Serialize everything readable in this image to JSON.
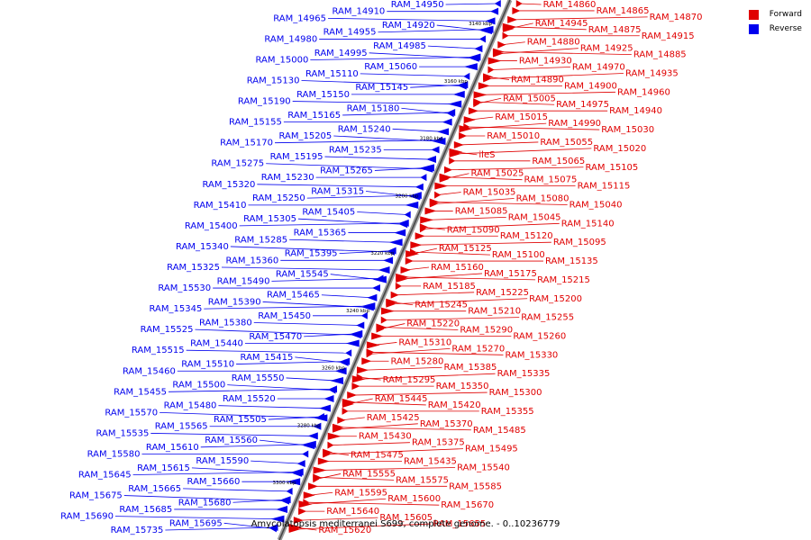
{
  "legend": {
    "forward_label": "Forward",
    "reverse_label": "Reverse",
    "forward_color": "#e00000",
    "reverse_color": "#0000ee"
  },
  "caption": "Amycolatopsis mediterranei S699, complete genome. - 0..10236779",
  "axis_ticks": [
    "3140 kbp",
    "3160 kbp",
    "3180 kbp",
    "3200 kbp",
    "3220 kbp",
    "3240 kbp",
    "3260 kbp",
    "3280 kbp",
    "3300 kbp"
  ],
  "reverse_genes": [
    "RAM_14950",
    "RAM_14910",
    "RAM_14965",
    "RAM_14920",
    "RAM_14955",
    "RAM_14980",
    "RAM_14985",
    "RAM_14995",
    "RAM_15000",
    "RAM_15060",
    "RAM_15110",
    "RAM_15130",
    "RAM_15145",
    "RAM_15150",
    "RAM_15190",
    "RAM_15180",
    "RAM_15165",
    "RAM_15155",
    "RAM_15240",
    "RAM_15205",
    "RAM_15170",
    "RAM_15235",
    "RAM_15195",
    "RAM_15275",
    "RAM_15265",
    "RAM_15230",
    "RAM_15320",
    "RAM_15315",
    "RAM_15250",
    "RAM_15410",
    "RAM_15405",
    "RAM_15305",
    "RAM_15400",
    "RAM_15365",
    "RAM_15285",
    "RAM_15340",
    "RAM_15395",
    "RAM_15360",
    "RAM_15325",
    "RAM_15545",
    "RAM_15490",
    "RAM_15530",
    "RAM_15465",
    "RAM_15390",
    "RAM_15345",
    "RAM_15450",
    "RAM_15380",
    "RAM_15525",
    "RAM_15470",
    "RAM_15440",
    "RAM_15515",
    "RAM_15415",
    "RAM_15510",
    "RAM_15460",
    "RAM_15550",
    "RAM_15500",
    "RAM_15455",
    "RAM_15520",
    "RAM_15480",
    "RAM_15570",
    "RAM_15505",
    "RAM_15565",
    "RAM_15535",
    "RAM_15560",
    "RAM_15610",
    "RAM_15580",
    "RAM_15590",
    "RAM_15615",
    "RAM_15645",
    "RAM_15660",
    "RAM_15665",
    "RAM_15675",
    "RAM_15680",
    "RAM_15685",
    "RAM_15690",
    "RAM_15695",
    "RAM_15735"
  ],
  "forward_genes": [
    "RAM_14860",
    "RAM_14865",
    "RAM_14870",
    "RAM_14945",
    "RAM_14875",
    "RAM_14915",
    "RAM_14880",
    "RAM_14925",
    "RAM_14885",
    "RAM_14930",
    "RAM_14970",
    "RAM_14935",
    "RAM_14890",
    "RAM_14900",
    "RAM_14960",
    "RAM_15005",
    "RAM_14975",
    "RAM_14940",
    "RAM_15015",
    "RAM_14990",
    "RAM_15030",
    "RAM_15010",
    "RAM_15055",
    "RAM_15020",
    "ileS",
    "RAM_15065",
    "RAM_15105",
    "RAM_15025",
    "RAM_15075",
    "RAM_15115",
    "RAM_15035",
    "RAM_15080",
    "RAM_15040",
    "RAM_15085",
    "RAM_15045",
    "RAM_15140",
    "RAM_15090",
    "RAM_15120",
    "RAM_15095",
    "RAM_15125",
    "RAM_15100",
    "RAM_15135",
    "RAM_15160",
    "RAM_15175",
    "RAM_15215",
    "RAM_15185",
    "RAM_15225",
    "RAM_15200",
    "RAM_15245",
    "RAM_15210",
    "RAM_15255",
    "RAM_15220",
    "RAM_15290",
    "RAM_15260",
    "RAM_15310",
    "RAM_15270",
    "RAM_15330",
    "RAM_15280",
    "RAM_15385",
    "RAM_15335",
    "RAM_15295",
    "RAM_15350",
    "RAM_15300",
    "RAM_15445",
    "RAM_15420",
    "RAM_15355",
    "RAM_15425",
    "RAM_15370",
    "RAM_15485",
    "RAM_15430",
    "RAM_15375",
    "RAM_15495",
    "RAM_15475",
    "RAM_15435",
    "RAM_15540",
    "RAM_15555",
    "RAM_15575",
    "RAM_15585",
    "RAM_15595",
    "RAM_15600",
    "RAM_15670",
    "RAM_15640",
    "RAM_15605",
    "RAM_15655",
    "RAM_15620"
  ]
}
